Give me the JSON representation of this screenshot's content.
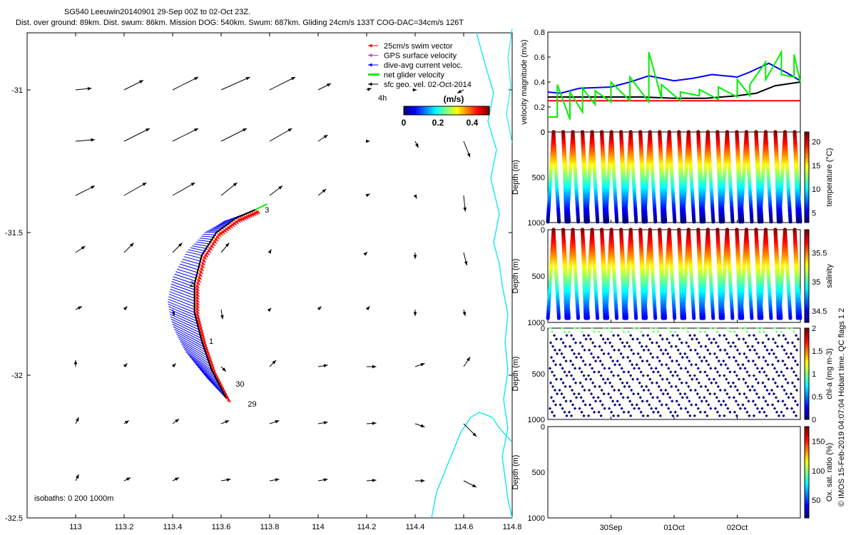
{
  "title": {
    "line1": "SG540 Leeuwin20140901 29-Sep 00Z to 02-Oct 23Z.",
    "line2": "Dist. over ground: 89km. Dist. swum: 86km. Mission DOG: 540km. Swum: 687km. Gliding 24cm/s 133T COG-DAC=34cm/s 126T"
  },
  "copyright": "© IMOS 15-Feb-2019 04:07:04 Hobart time. QC flags 1  2",
  "colors": {
    "swim": "#ff0000",
    "gps": "#cc33cc",
    "dac": "#0000ff",
    "net": "#00ee00",
    "coast": "#00e5ee",
    "black": "#000000"
  },
  "chart_data": [
    {
      "type": "scatter",
      "name": "map",
      "xlim": [
        112.8,
        114.8
      ],
      "ylim": [
        -32.5,
        -30.8
      ],
      "xticks": [
        113,
        113.2,
        113.4,
        113.6,
        113.8,
        114,
        114.2,
        114.4,
        114.6,
        114.8
      ],
      "yticks": [
        -31,
        -31.5,
        -32,
        -32.5
      ],
      "legend": {
        "placement": "top-right",
        "entries": [
          "25cm/s swim vector",
          "GPS surface velocity",
          "dive-avg current veloc.",
          "net glider velocity",
          "sfc geo. vel. 02-Oct-2014"
        ],
        "note": "4h"
      },
      "colorbar": {
        "label": "(m/s)",
        "ticks": [
          "0",
          "0.2",
          "0.4"
        ],
        "range": [
          0,
          0.5
        ]
      },
      "isobaths_label": "isobaths: 0   200  1000m",
      "track_labels": [
        {
          "text": "29",
          "lon": 113.71,
          "lat": -32.11
        },
        {
          "text": "30",
          "lon": 113.66,
          "lat": -32.04
        },
        {
          "text": "1",
          "lon": 113.55,
          "lat": -31.89
        },
        {
          "text": "2",
          "lon": 113.47,
          "lat": -31.69
        },
        {
          "text": "3",
          "lon": 113.78,
          "lat": -31.43
        }
      ],
      "track": [
        [
          113.62,
          -32.08
        ],
        [
          113.56,
          -31.98
        ],
        [
          113.52,
          -31.88
        ],
        [
          113.49,
          -31.78
        ],
        [
          113.49,
          -31.68
        ],
        [
          113.52,
          -31.58
        ],
        [
          113.58,
          -31.5
        ],
        [
          113.66,
          -31.45
        ],
        [
          113.74,
          -31.42
        ]
      ],
      "net_velocity_segment": [
        [
          113.74,
          -31.42
        ],
        [
          113.79,
          -31.4
        ]
      ],
      "geo_vectors": {
        "lons": [
          113,
          113.2,
          113.4,
          113.6,
          113.8,
          114,
          114.2,
          114.4,
          114.6
        ],
        "lats": [
          -31,
          -31.18,
          -31.37,
          -31.57,
          -31.77,
          -31.97,
          -32.17,
          -32.37
        ],
        "u": [
          [
            0.5,
            0.6,
            0.8,
            0.9,
            0.8,
            0.4,
            0.15,
            0.05,
            -0.2
          ],
          [
            0.6,
            0.8,
            0.8,
            0.8,
            0.7,
            0.3,
            0.1,
            0.1,
            0.2
          ],
          [
            0.6,
            0.7,
            0.7,
            0.5,
            0.4,
            0.25,
            0.1,
            0.05,
            0.05
          ],
          [
            0.3,
            0.3,
            0.3,
            0.25,
            0.05,
            0,
            0.02,
            0,
            0.1
          ],
          [
            0.2,
            0.1,
            0.05,
            0.05,
            0.05,
            0.1,
            0.1,
            0,
            0.05
          ],
          [
            0,
            0.1,
            0.1,
            0.15,
            0.2,
            0.3,
            0.3,
            0.3,
            0.2
          ],
          [
            0.1,
            0.15,
            0.2,
            0.25,
            0.3,
            0.3,
            0.3,
            0.3,
            0.4
          ],
          [
            0.1,
            0.2,
            0.2,
            0.3,
            0.3,
            0.3,
            0.3,
            0.3,
            0.4
          ]
        ],
        "v": [
          [
            0.05,
            0.3,
            0.4,
            0.4,
            0.4,
            0.2,
            0.05,
            0,
            -0.1
          ],
          [
            0.05,
            0.4,
            0.4,
            0.4,
            0.4,
            0.2,
            0,
            -0.2,
            -0.5
          ],
          [
            0.3,
            0.4,
            0.4,
            0.4,
            0.3,
            0.2,
            0.05,
            -0.1,
            -0.5
          ],
          [
            0.2,
            0.3,
            0.3,
            0.3,
            0.1,
            0,
            0.02,
            -0.2,
            -0.4
          ],
          [
            0.1,
            0.1,
            -0.2,
            -0.3,
            0.05,
            0.1,
            0.1,
            -0.2,
            -0.2
          ],
          [
            0.2,
            0.1,
            0.1,
            -0.15,
            0.2,
            0.05,
            0,
            0.1,
            0.3
          ],
          [
            0.2,
            0.1,
            0.15,
            0.1,
            0.1,
            0.05,
            0.02,
            -0.1,
            -0.4
          ],
          [
            0.2,
            0.1,
            0.1,
            0.05,
            0.05,
            0.05,
            0.02,
            0,
            -0.2
          ]
        ]
      }
    },
    {
      "type": "line",
      "name": "velocity",
      "ylabel": "velocity magnitude (m/s)",
      "xlim": [
        0,
        4
      ],
      "ylim": [
        0,
        0.8
      ],
      "yticks": [
        0,
        0.2,
        0.4,
        0.6,
        0.8
      ],
      "series": [
        {
          "color": "#0000ff",
          "x": [
            0,
            0.2,
            0.5,
            1,
            1.3,
            1.6,
            2,
            2.3,
            2.6,
            3,
            3.2,
            3.5,
            3.8,
            4
          ],
          "y": [
            0.32,
            0.31,
            0.35,
            0.36,
            0.4,
            0.45,
            0.41,
            0.43,
            0.46,
            0.44,
            0.48,
            0.55,
            0.47,
            0.41
          ]
        },
        {
          "color": "#000000",
          "x": [
            0,
            0.5,
            1,
            1.5,
            2,
            2.5,
            3,
            3.3,
            3.6,
            4
          ],
          "y": [
            0.28,
            0.28,
            0.28,
            0.28,
            0.27,
            0.27,
            0.29,
            0.31,
            0.37,
            0.4
          ]
        },
        {
          "color": "#ff0000",
          "x": [
            0,
            4
          ],
          "y": [
            0.25,
            0.25
          ]
        },
        {
          "color": "#00ee00",
          "x": [
            0,
            0.15,
            0.15,
            0.35,
            0.35,
            0.55,
            0.55,
            0.75,
            0.75,
            1,
            1,
            1.3,
            1.3,
            1.6,
            1.6,
            1.8,
            1.8,
            2.1,
            2.1,
            2.4,
            2.4,
            2.7,
            2.7,
            3,
            3,
            3.2,
            3.2,
            3.45,
            3.45,
            3.7,
            3.7,
            3.9,
            3.9,
            4
          ],
          "y": [
            0.12,
            0.12,
            0.38,
            0.1,
            0.32,
            0.16,
            0.35,
            0.22,
            0.33,
            0.24,
            0.4,
            0.25,
            0.44,
            0.24,
            0.64,
            0.27,
            0.38,
            0.25,
            0.32,
            0.29,
            0.34,
            0.26,
            0.36,
            0.28,
            0.42,
            0.29,
            0.38,
            0.56,
            0.42,
            0.64,
            0.46,
            0.44,
            0.62,
            0.4
          ]
        }
      ]
    },
    {
      "type": "scatter",
      "name": "temperature",
      "ylabel": "Depth (m)",
      "cblabel": "temperature (°C)",
      "ylim": [
        0,
        1000
      ],
      "yticks": [
        0,
        500,
        1000
      ],
      "cbticks": [
        5,
        10,
        15,
        20
      ],
      "cbrange": [
        3,
        22
      ]
    },
    {
      "type": "scatter",
      "name": "salinity",
      "ylabel": "Depth (m)",
      "cblabel": "salinity",
      "ylim": [
        0,
        1000
      ],
      "yticks": [
        0,
        500,
        1000
      ],
      "cbticks": [
        34.5,
        35,
        35.5
      ],
      "cbrange": [
        34.3,
        35.9
      ]
    },
    {
      "type": "scatter",
      "name": "chla",
      "ylabel": "Depth (m)",
      "cblabel": "chl-a (mg m-3)",
      "ylim": [
        0,
        1000
      ],
      "yticks": [
        0,
        500,
        1000
      ],
      "cbticks": [
        0,
        0.5,
        1,
        1.5,
        2
      ],
      "cbrange": [
        0,
        2
      ]
    },
    {
      "type": "scatter",
      "name": "oxygen",
      "ylabel": "Depth (m)",
      "cblabel": "Ox. sat. ratio (%)",
      "ylim": [
        0,
        1000
      ],
      "yticks": [
        0,
        500,
        1000
      ],
      "cbticks": [
        50,
        100,
        150
      ],
      "cbrange": [
        20,
        175
      ]
    }
  ],
  "time_axis": {
    "ticks": [
      {
        "label": "30Sep",
        "t": 1
      },
      {
        "label": "01Oct",
        "t": 2
      },
      {
        "label": "02Oct",
        "t": 3
      }
    ],
    "range": [
      0,
      4
    ]
  },
  "dive_count": 26
}
